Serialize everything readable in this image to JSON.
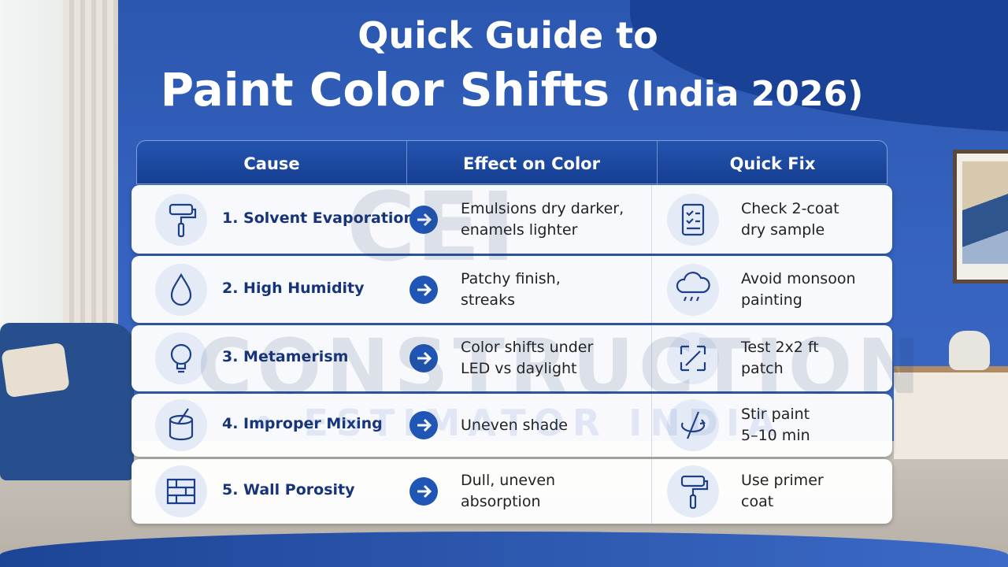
{
  "title": {
    "line1": "Quick Guide to",
    "line2": "Paint Color Shifts",
    "line2_suffix": "(India 2026)"
  },
  "table": {
    "headers": [
      "Cause",
      "Effect on Color",
      "Quick Fix"
    ],
    "rows": [
      {
        "cause": "1. Solvent Evaporation",
        "effect": [
          "Emulsions dry darker,",
          "enamels lighter"
        ],
        "fix": [
          "Check 2-coat",
          "dry sample"
        ]
      },
      {
        "cause": "2. High Humidity",
        "effect": [
          "Patchy finish,",
          "streaks"
        ],
        "fix": [
          "Avoid monsoon",
          "painting"
        ]
      },
      {
        "cause": "3. Metamerism",
        "effect": [
          "Color shifts under",
          "LED vs daylight"
        ],
        "fix": [
          "Test 2x2 ft",
          "patch"
        ]
      },
      {
        "cause": "4. Improper Mixing",
        "effect": [
          "Uneven shade"
        ],
        "fix": [
          "Stir paint",
          "5–10 min"
        ]
      },
      {
        "cause": "5. Wall Porosity",
        "effect": [
          "Dull, uneven",
          "absorption"
        ],
        "fix": [
          "Use primer",
          "coat"
        ]
      }
    ]
  },
  "watermark": [
    "CEI",
    "CONSTRUCTION",
    "• ESTIMATOR INDIA"
  ]
}
